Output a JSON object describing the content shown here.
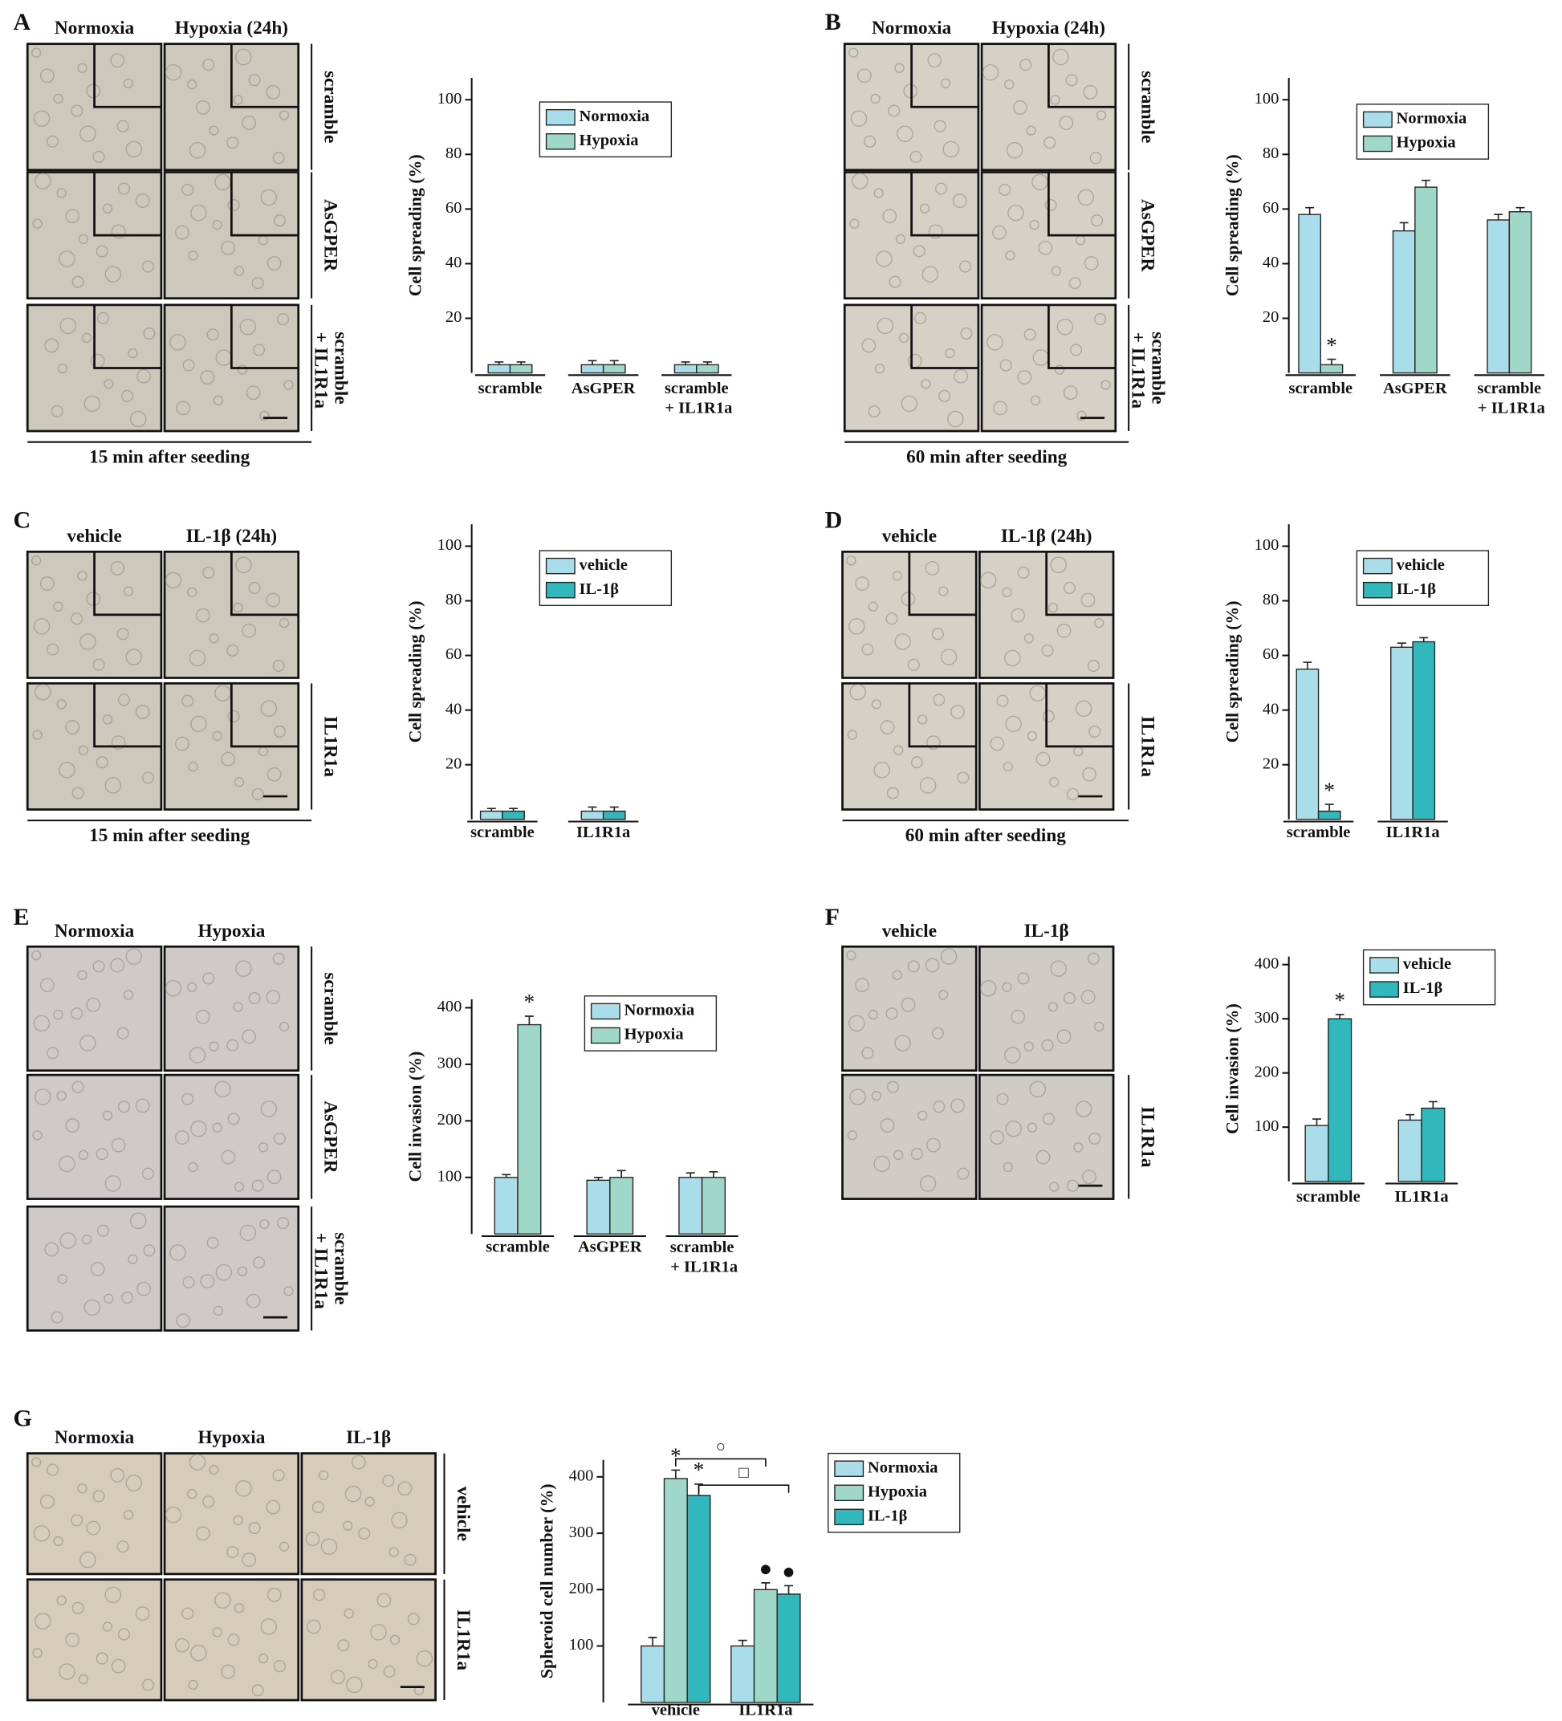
{
  "panels": [
    {
      "letter": "A",
      "columns": [
        "Normoxia",
        "Hypoxia (24h)"
      ],
      "rows": [
        "scramble",
        "AsGPER",
        "scramble + IL1R1a"
      ],
      "caption": "15 min after seeding"
    },
    {
      "letter": "B",
      "columns": [
        "Normoxia",
        "Hypoxia (24h)"
      ],
      "rows": [
        "scramble",
        "AsGPER",
        "scramble + IL1R1a"
      ],
      "caption": "60 min after seeding"
    },
    {
      "letter": "C",
      "columns": [
        "vehicle",
        "IL-1β (24h)"
      ],
      "rows": [
        null,
        "IL1R1a"
      ],
      "caption": "15 min after seeding"
    },
    {
      "letter": "D",
      "columns": [
        "vehicle",
        "IL-1β (24h)"
      ],
      "rows": [
        null,
        "IL1R1a"
      ],
      "caption": "60 min after seeding"
    },
    {
      "letter": "E",
      "columns": [
        "Normoxia",
        "Hypoxia"
      ],
      "rows": [
        "scramble",
        "AsGPER",
        "scramble + IL1R1a"
      ]
    },
    {
      "letter": "F",
      "columns": [
        "vehicle",
        "IL-1β"
      ],
      "rows": [
        null,
        "IL1R1a"
      ]
    },
    {
      "letter": "G",
      "columns": [
        "Normoxia",
        "Hypoxia",
        "IL-1β"
      ],
      "rows": [
        "vehicle",
        "IL1R1a"
      ]
    }
  ],
  "chart_data": [
    {
      "type": "bar",
      "y_label": "Cell spreading (%)",
      "categories": [
        "scramble",
        "AsGPER",
        "scramble + IL1R1a"
      ],
      "ylim": [
        0,
        108
      ],
      "yticks": [
        20,
        40,
        60,
        80,
        100
      ],
      "legend": "upper center",
      "series": [
        {
          "name": "Normoxia",
          "color": "#a9dde9",
          "values": [
            3,
            3,
            3
          ],
          "errors": [
            1,
            1.5,
            1
          ]
        },
        {
          "name": "Hypoxia",
          "color": "#9fd8c8",
          "values": [
            3,
            3,
            3
          ],
          "errors": [
            1,
            1.5,
            1
          ]
        }
      ]
    },
    {
      "type": "bar",
      "y_label": "Cell spreading (%)",
      "categories": [
        "scramble",
        "AsGPER",
        "scramble + IL1R1a"
      ],
      "ylim": [
        0,
        108
      ],
      "yticks": [
        20,
        40,
        60,
        80,
        100
      ],
      "legend": "upper center",
      "series": [
        {
          "name": "Normoxia",
          "color": "#a9dde9",
          "values": [
            58,
            52,
            56
          ],
          "errors": [
            2.5,
            3,
            2
          ]
        },
        {
          "name": "Hypoxia",
          "color": "#9fd8c8",
          "values": [
            3,
            68,
            59
          ],
          "errors": [
            2,
            2.5,
            1.5
          ],
          "marks": [
            "*",
            null,
            null
          ]
        }
      ]
    },
    {
      "type": "bar",
      "y_label": "Cell spreading (%)",
      "categories": [
        "scramble",
        "IL1R1a"
      ],
      "ylim": [
        0,
        108
      ],
      "yticks": [
        20,
        40,
        60,
        80,
        100
      ],
      "legend": "upper center",
      "series": [
        {
          "name": "vehicle",
          "color": "#a9dde9",
          "values": [
            3,
            3
          ],
          "errors": [
            1,
            1.5
          ]
        },
        {
          "name": "IL-1β",
          "color": "#31b8bd",
          "values": [
            3,
            3
          ],
          "errors": [
            1,
            1.5
          ]
        }
      ]
    },
    {
      "type": "bar",
      "y_label": "Cell spreading (%)",
      "categories": [
        "scramble",
        "IL1R1a"
      ],
      "ylim": [
        0,
        108
      ],
      "yticks": [
        20,
        40,
        60,
        80,
        100
      ],
      "legend": "upper center",
      "series": [
        {
          "name": "vehicle",
          "color": "#a9dde9",
          "values": [
            55,
            63
          ],
          "errors": [
            2.5,
            1.5
          ]
        },
        {
          "name": "IL-1β",
          "color": "#31b8bd",
          "values": [
            3,
            65
          ],
          "errors": [
            2.5,
            1.5
          ],
          "marks": [
            "*",
            null
          ]
        }
      ]
    },
    {
      "type": "bar",
      "y_label": "Cell invasion (%)",
      "categories": [
        "scramble",
        "AsGPER",
        "scramble + IL1R1a"
      ],
      "ylim": [
        0,
        415
      ],
      "yticks": [
        100,
        200,
        300,
        400
      ],
      "legend": "upper right",
      "series": [
        {
          "name": "Normoxia",
          "color": "#a9dde9",
          "values": [
            100,
            95,
            100
          ],
          "errors": [
            5,
            5,
            8
          ]
        },
        {
          "name": "Hypoxia",
          "color": "#9fd8c8",
          "values": [
            370,
            100,
            100
          ],
          "errors": [
            15,
            12,
            10
          ],
          "marks": [
            "*",
            null,
            null
          ]
        }
      ]
    },
    {
      "type": "bar",
      "y_label": "Cell invasion (%)",
      "categories": [
        "scramble",
        "IL1R1a"
      ],
      "ylim": [
        0,
        415
      ],
      "yticks": [
        100,
        200,
        300,
        400
      ],
      "legend": "upper center",
      "series": [
        {
          "name": "vehicle",
          "color": "#a9dde9",
          "values": [
            103,
            113
          ],
          "errors": [
            12,
            10
          ]
        },
        {
          "name": "IL-1β",
          "color": "#31b8bd",
          "values": [
            300,
            135
          ],
          "errors": [
            8,
            12
          ],
          "marks": [
            "*",
            null
          ]
        }
      ]
    },
    {
      "type": "bar",
      "y_label": "Spheroid cell number (%)",
      "categories": [
        "vehicle",
        "IL1R1a"
      ],
      "ylim": [
        0,
        430
      ],
      "yticks": [
        100,
        200,
        300,
        400
      ],
      "legend": "outside right",
      "series": [
        {
          "name": "Normoxia",
          "color": "#a9dde9",
          "values": [
            100,
            100
          ],
          "errors": [
            15,
            10
          ]
        },
        {
          "name": "Hypoxia",
          "color": "#9fd8c8",
          "values": [
            397,
            200
          ],
          "errors": [
            15,
            12
          ],
          "marks": [
            "*",
            "●"
          ]
        },
        {
          "name": "IL-1β",
          "color": "#31b8bd",
          "values": [
            367,
            192
          ],
          "errors": [
            20,
            15
          ],
          "marks": [
            "*",
            "●"
          ]
        }
      ],
      "brackets": [
        "○",
        "□"
      ]
    }
  ]
}
